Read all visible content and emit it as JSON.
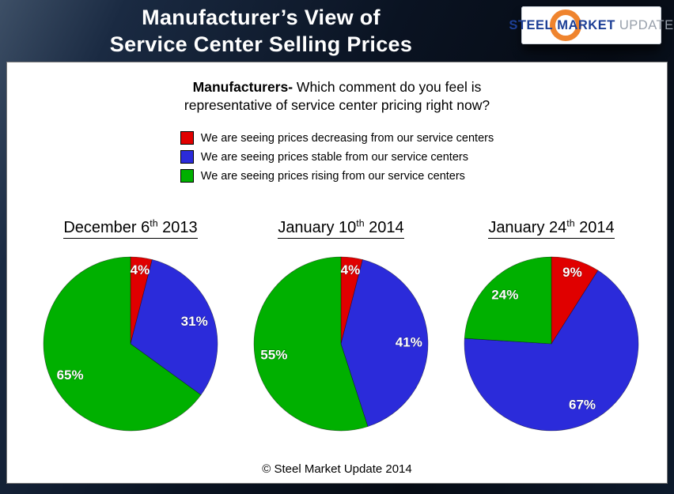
{
  "header": {
    "title_line1": "Manufacturer’s View of",
    "title_line2": "Service Center Selling Prices",
    "logo": {
      "steel": "STEEL",
      "market": "MARKET",
      "update": "UPDATE",
      "accent_color": "#ee7d23",
      "text_color": "#1d3f96",
      "update_color": "#98a0ab"
    }
  },
  "question": {
    "bold": "Manufacturers-",
    "line1_rest": " Which comment do you feel is",
    "line2": "representative of service center pricing right now?"
  },
  "legend": [
    {
      "key": "decreasing",
      "color": "#e00000",
      "label": "We are seeing prices decreasing from our service centers"
    },
    {
      "key": "stable",
      "color": "#2b2bda",
      "label": "We are seeing prices stable from our service centers"
    },
    {
      "key": "rising",
      "color": "#00b000",
      "label": "We are seeing prices rising from our service centers"
    }
  ],
  "chart_data": [
    {
      "type": "pie",
      "title": "December 6th 2013",
      "title_prefix": "December 6",
      "title_sup": "th",
      "title_suffix": " 2013",
      "start_angle_deg": 0,
      "direction": "clockwise",
      "slices": [
        {
          "key": "decreasing",
          "label": "We are seeing prices decreasing from our service centers",
          "value": 4,
          "data_label": "4%",
          "color": "#e00000"
        },
        {
          "key": "stable",
          "label": "We are seeing prices stable from our service centers",
          "value": 31,
          "data_label": "31%",
          "color": "#2b2bda"
        },
        {
          "key": "rising",
          "label": "We are seeing prices rising from our service centers",
          "value": 65,
          "data_label": "65%",
          "color": "#00b000"
        }
      ]
    },
    {
      "type": "pie",
      "title": "January 10th 2014",
      "title_prefix": "January 10",
      "title_sup": "th",
      "title_suffix": " 2014",
      "start_angle_deg": 0,
      "direction": "clockwise",
      "slices": [
        {
          "key": "decreasing",
          "label": "We are seeing prices decreasing from our service centers",
          "value": 4,
          "data_label": "4%",
          "color": "#e00000"
        },
        {
          "key": "stable",
          "label": "We are seeing prices stable from our service centers",
          "value": 41,
          "data_label": "41%",
          "color": "#2b2bda"
        },
        {
          "key": "rising",
          "label": "We are seeing prices rising from our service centers",
          "value": 55,
          "data_label": "55%",
          "color": "#00b000"
        }
      ]
    },
    {
      "type": "pie",
      "title": "January 24th 2014",
      "title_prefix": "January 24",
      "title_sup": "th",
      "title_suffix": " 2014",
      "start_angle_deg": 0,
      "direction": "clockwise",
      "slices": [
        {
          "key": "decreasing",
          "label": "We are seeing prices decreasing from our service centers",
          "value": 9,
          "data_label": "9%",
          "color": "#e00000"
        },
        {
          "key": "stable",
          "label": "We are seeing prices stable from our service centers",
          "value": 67,
          "data_label": "67%",
          "color": "#2b2bda"
        },
        {
          "key": "rising",
          "label": "We are seeing prices rising from our service centers",
          "value": 24,
          "data_label": "24%",
          "color": "#00b000"
        }
      ]
    }
  ],
  "footer": {
    "copyright": "© Steel Market Update 2014"
  }
}
